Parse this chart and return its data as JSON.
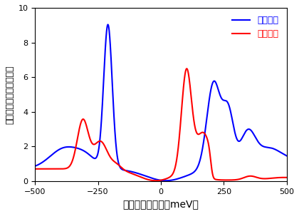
{
  "title": "",
  "xlabel": "電子エネルギー（meV）",
  "ylabel": "電子状態数（任意単位）",
  "xlim": [
    -500,
    500
  ],
  "ylim": [
    0,
    10
  ],
  "yticks": [
    0,
    2,
    4,
    6,
    8,
    10
  ],
  "xticks": [
    -500,
    -250,
    0,
    250,
    500
  ],
  "legend1": "ケース１",
  "legend2": "ケース２",
  "color1": "#0000ff",
  "color2": "#ff0000",
  "background": "#ffffff",
  "linewidth": 1.5
}
